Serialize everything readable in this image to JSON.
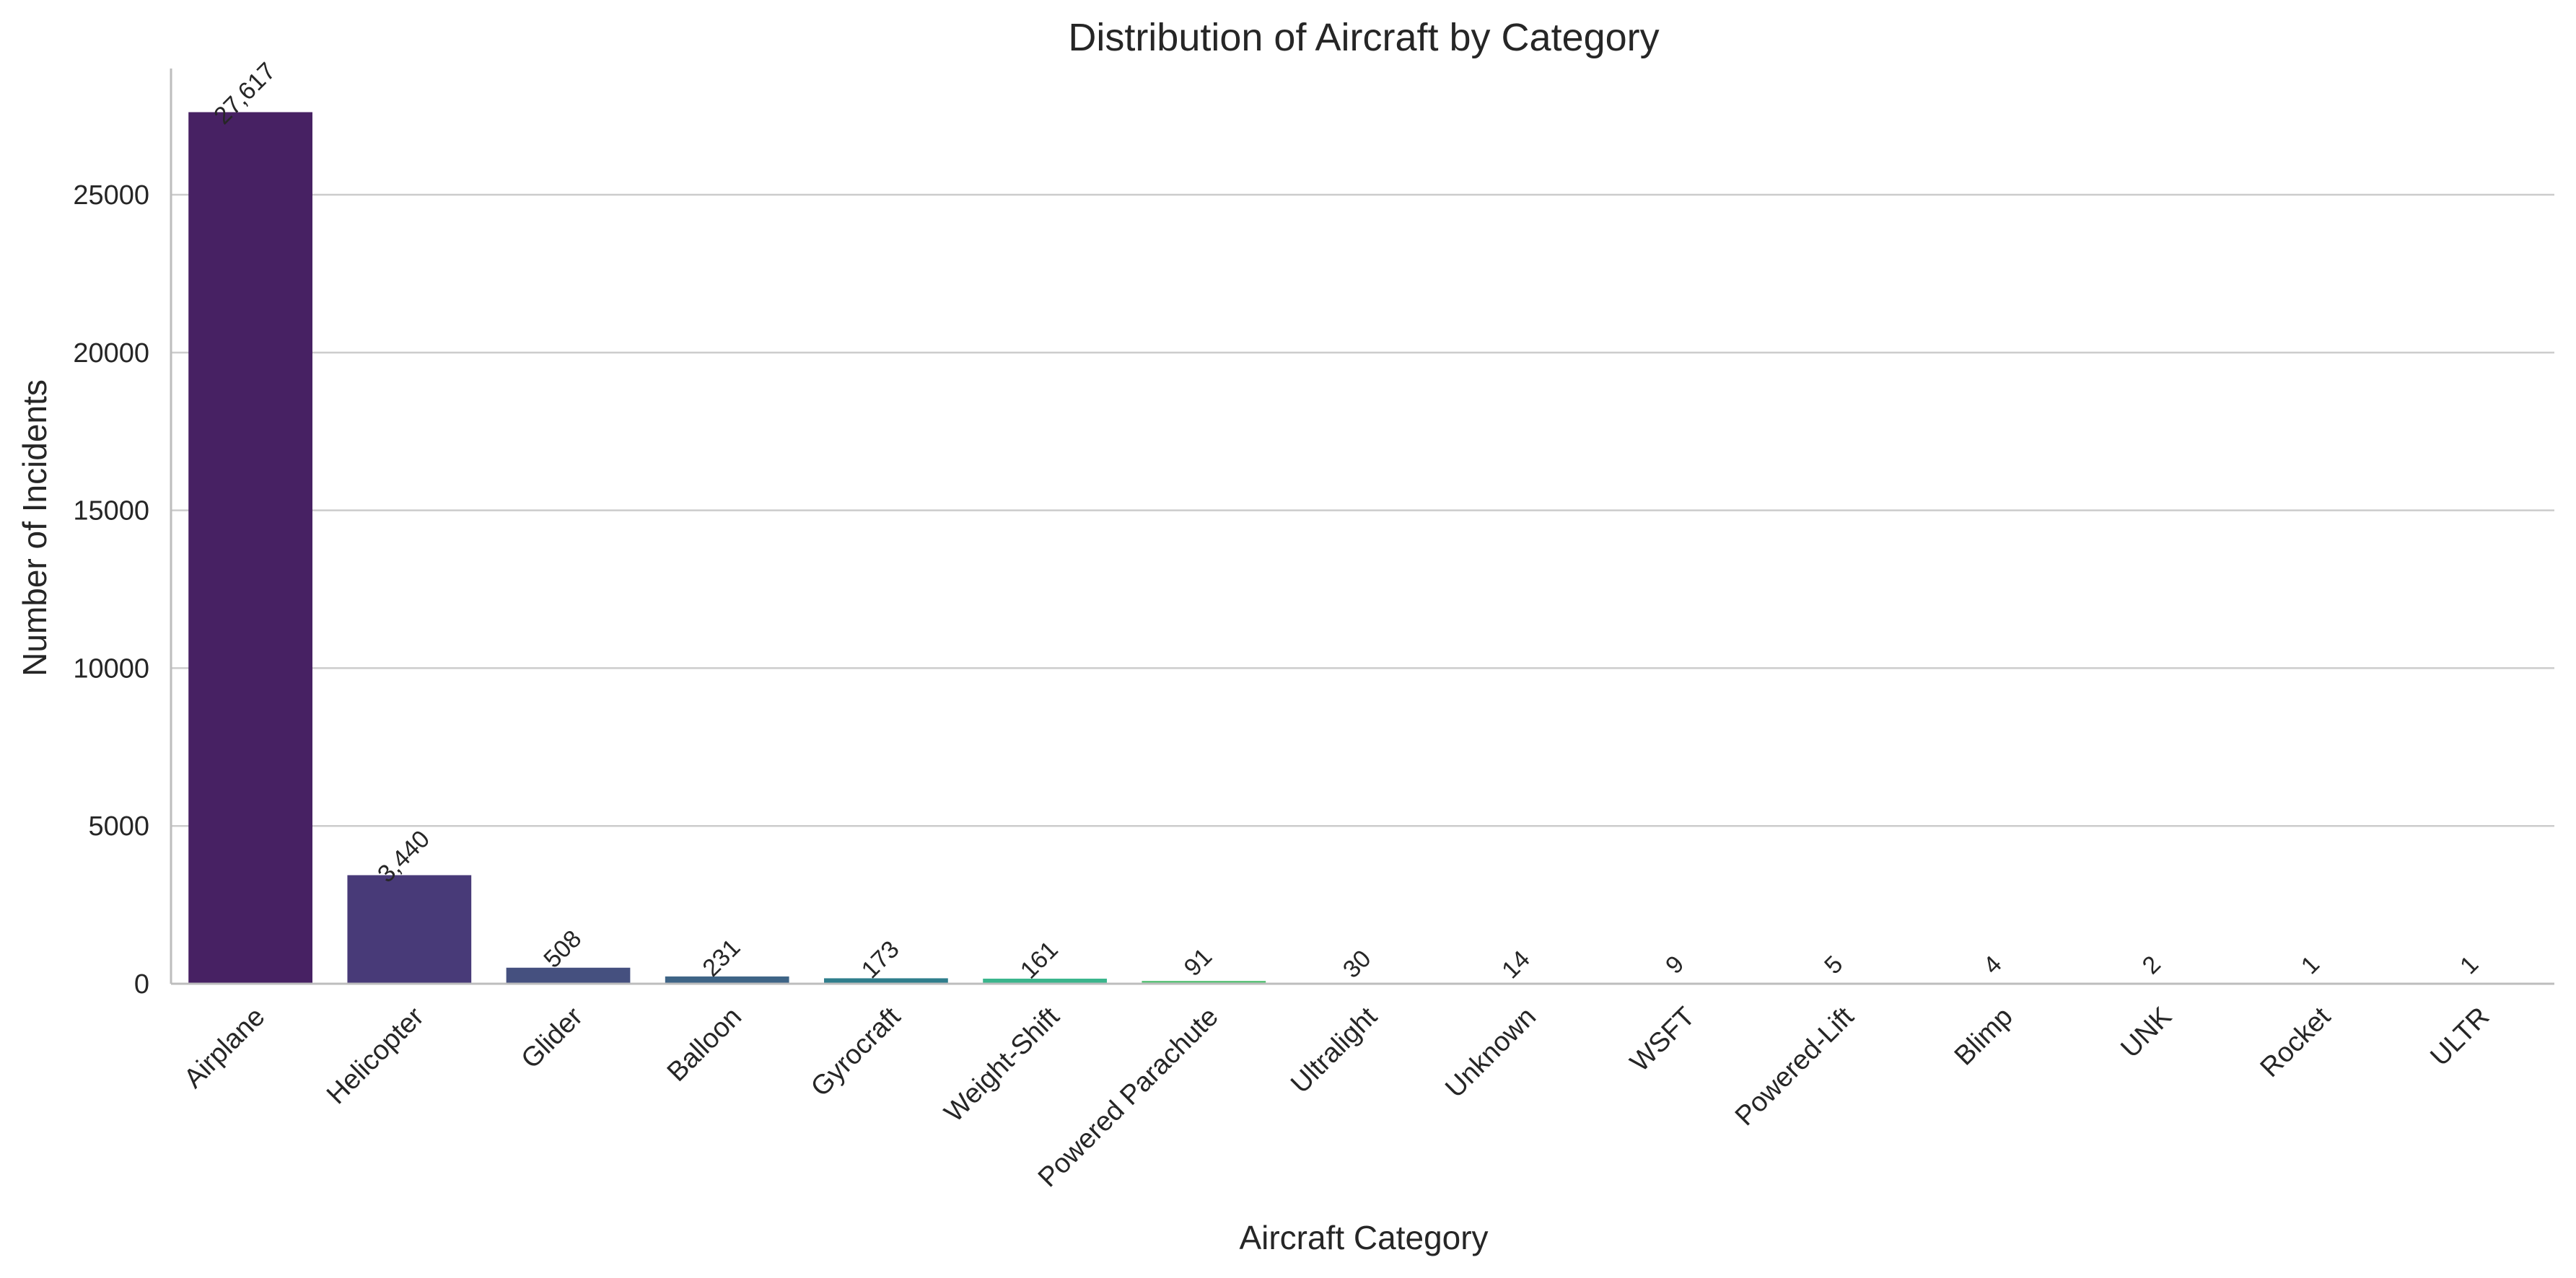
{
  "chart_data": {
    "type": "bar",
    "title": "Distribution of Aircraft by Category",
    "xlabel": "Aircraft Category",
    "ylabel": "Number of Incidents",
    "categories": [
      "Airplane",
      "Helicopter",
      "Glider",
      "Balloon",
      "Gyrocraft",
      "Weight-Shift",
      "Powered Parachute",
      "Ultralight",
      "Unknown",
      "WSFT",
      "Powered-Lift",
      "Blimp",
      "UNK",
      "Rocket",
      "ULTR"
    ],
    "values": [
      27617,
      3440,
      508,
      231,
      173,
      161,
      91,
      30,
      14,
      9,
      5,
      4,
      2,
      1,
      1
    ],
    "data_labels": [
      "27,617",
      "3,440",
      "508",
      "231",
      "173",
      "161",
      "91",
      "30",
      "14",
      "9",
      "5",
      "4",
      "2",
      "1",
      "1"
    ],
    "ylim": [
      0,
      29000
    ],
    "yticks": [
      0,
      5000,
      10000,
      15000,
      20000,
      25000
    ],
    "ytick_labels": [
      "0",
      "5000",
      "10000",
      "15000",
      "20000",
      "25000"
    ],
    "grid": "horizontal",
    "bar_colors": [
      "#472163",
      "#483a78",
      "#45507f",
      "#3e6486",
      "#2f7e8c",
      "#3ab58c",
      "#5dc47a",
      "#7dcf5f",
      "#9bd84a",
      "#b4de39",
      "#c9e22d",
      "#d8e42a",
      "#e4e528",
      "#ede626",
      "#f2e626"
    ]
  }
}
